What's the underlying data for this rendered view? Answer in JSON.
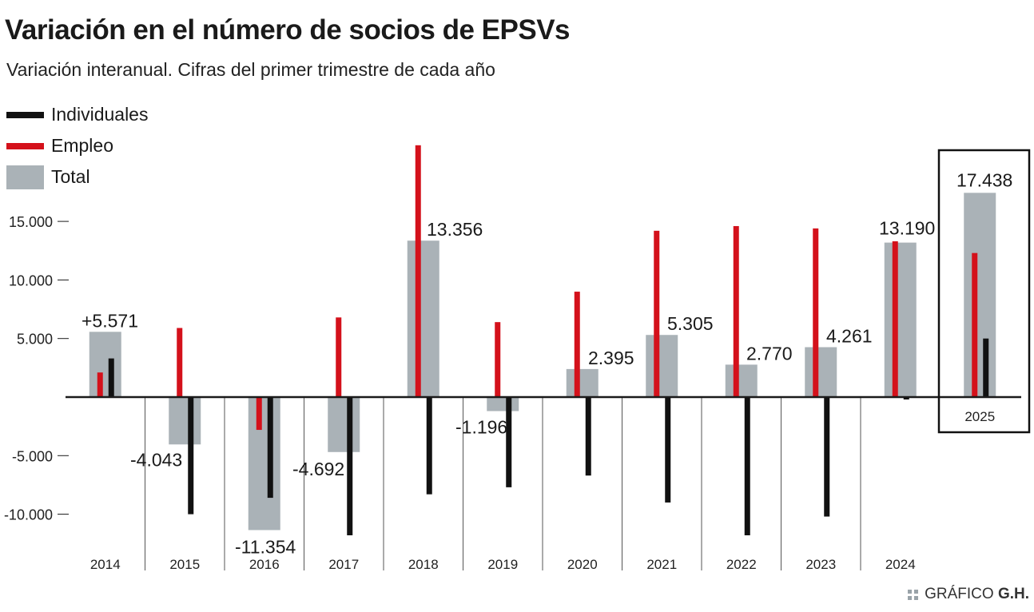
{
  "header": {
    "title": "Variación en el número de socios de EPSVs",
    "subtitle": "Variación interanual. Cifras del primer trimestre de cada año"
  },
  "footer": {
    "prefix": "GRÁFICO ",
    "brand": "G.H."
  },
  "colors": {
    "individuales": "#111111",
    "empleo": "#d4111b",
    "total": "#aab2b7",
    "axis": "#1a1a1a",
    "divider": "#555555"
  },
  "chart_data": {
    "type": "bar",
    "categories": [
      "2014",
      "2015",
      "2016",
      "2017",
      "2018",
      "2019",
      "2020",
      "2021",
      "2022",
      "2023",
      "2024",
      "2025"
    ],
    "highlight_category": "2025",
    "yticks": [
      {
        "value": 15000,
        "label": "15.000"
      },
      {
        "value": 10000,
        "label": "10.000"
      },
      {
        "value": 5000,
        "label": "5.000"
      },
      {
        "value": -5000,
        "label": "-5.000"
      },
      {
        "value": -10000,
        "label": "-10.000"
      }
    ],
    "ylim": [
      -12000,
      22000
    ],
    "legend_position": "top-left",
    "series": [
      {
        "name": "Individuales",
        "key": "individuales",
        "values": [
          3300,
          -10000,
          -8600,
          -11800,
          -8300,
          -7700,
          -6700,
          -9000,
          -11800,
          -10200,
          -200,
          5000
        ]
      },
      {
        "name": "Empleo",
        "key": "empleo",
        "values": [
          2100,
          5900,
          -2800,
          6800,
          21500,
          6400,
          9000,
          14200,
          14600,
          14400,
          13300,
          12300
        ]
      },
      {
        "name": "Total",
        "key": "total",
        "values": [
          5571,
          -4043,
          -11354,
          -4692,
          13356,
          -1196,
          2395,
          5305,
          2770,
          4261,
          13190,
          17438
        ],
        "labels": [
          "+5.571",
          "-4.043",
          "-11.354",
          "-4.692",
          "13.356",
          "-1.196",
          "2.395",
          "5.305",
          "2.770",
          "4.261",
          "13.190",
          "17.438"
        ]
      }
    ]
  }
}
